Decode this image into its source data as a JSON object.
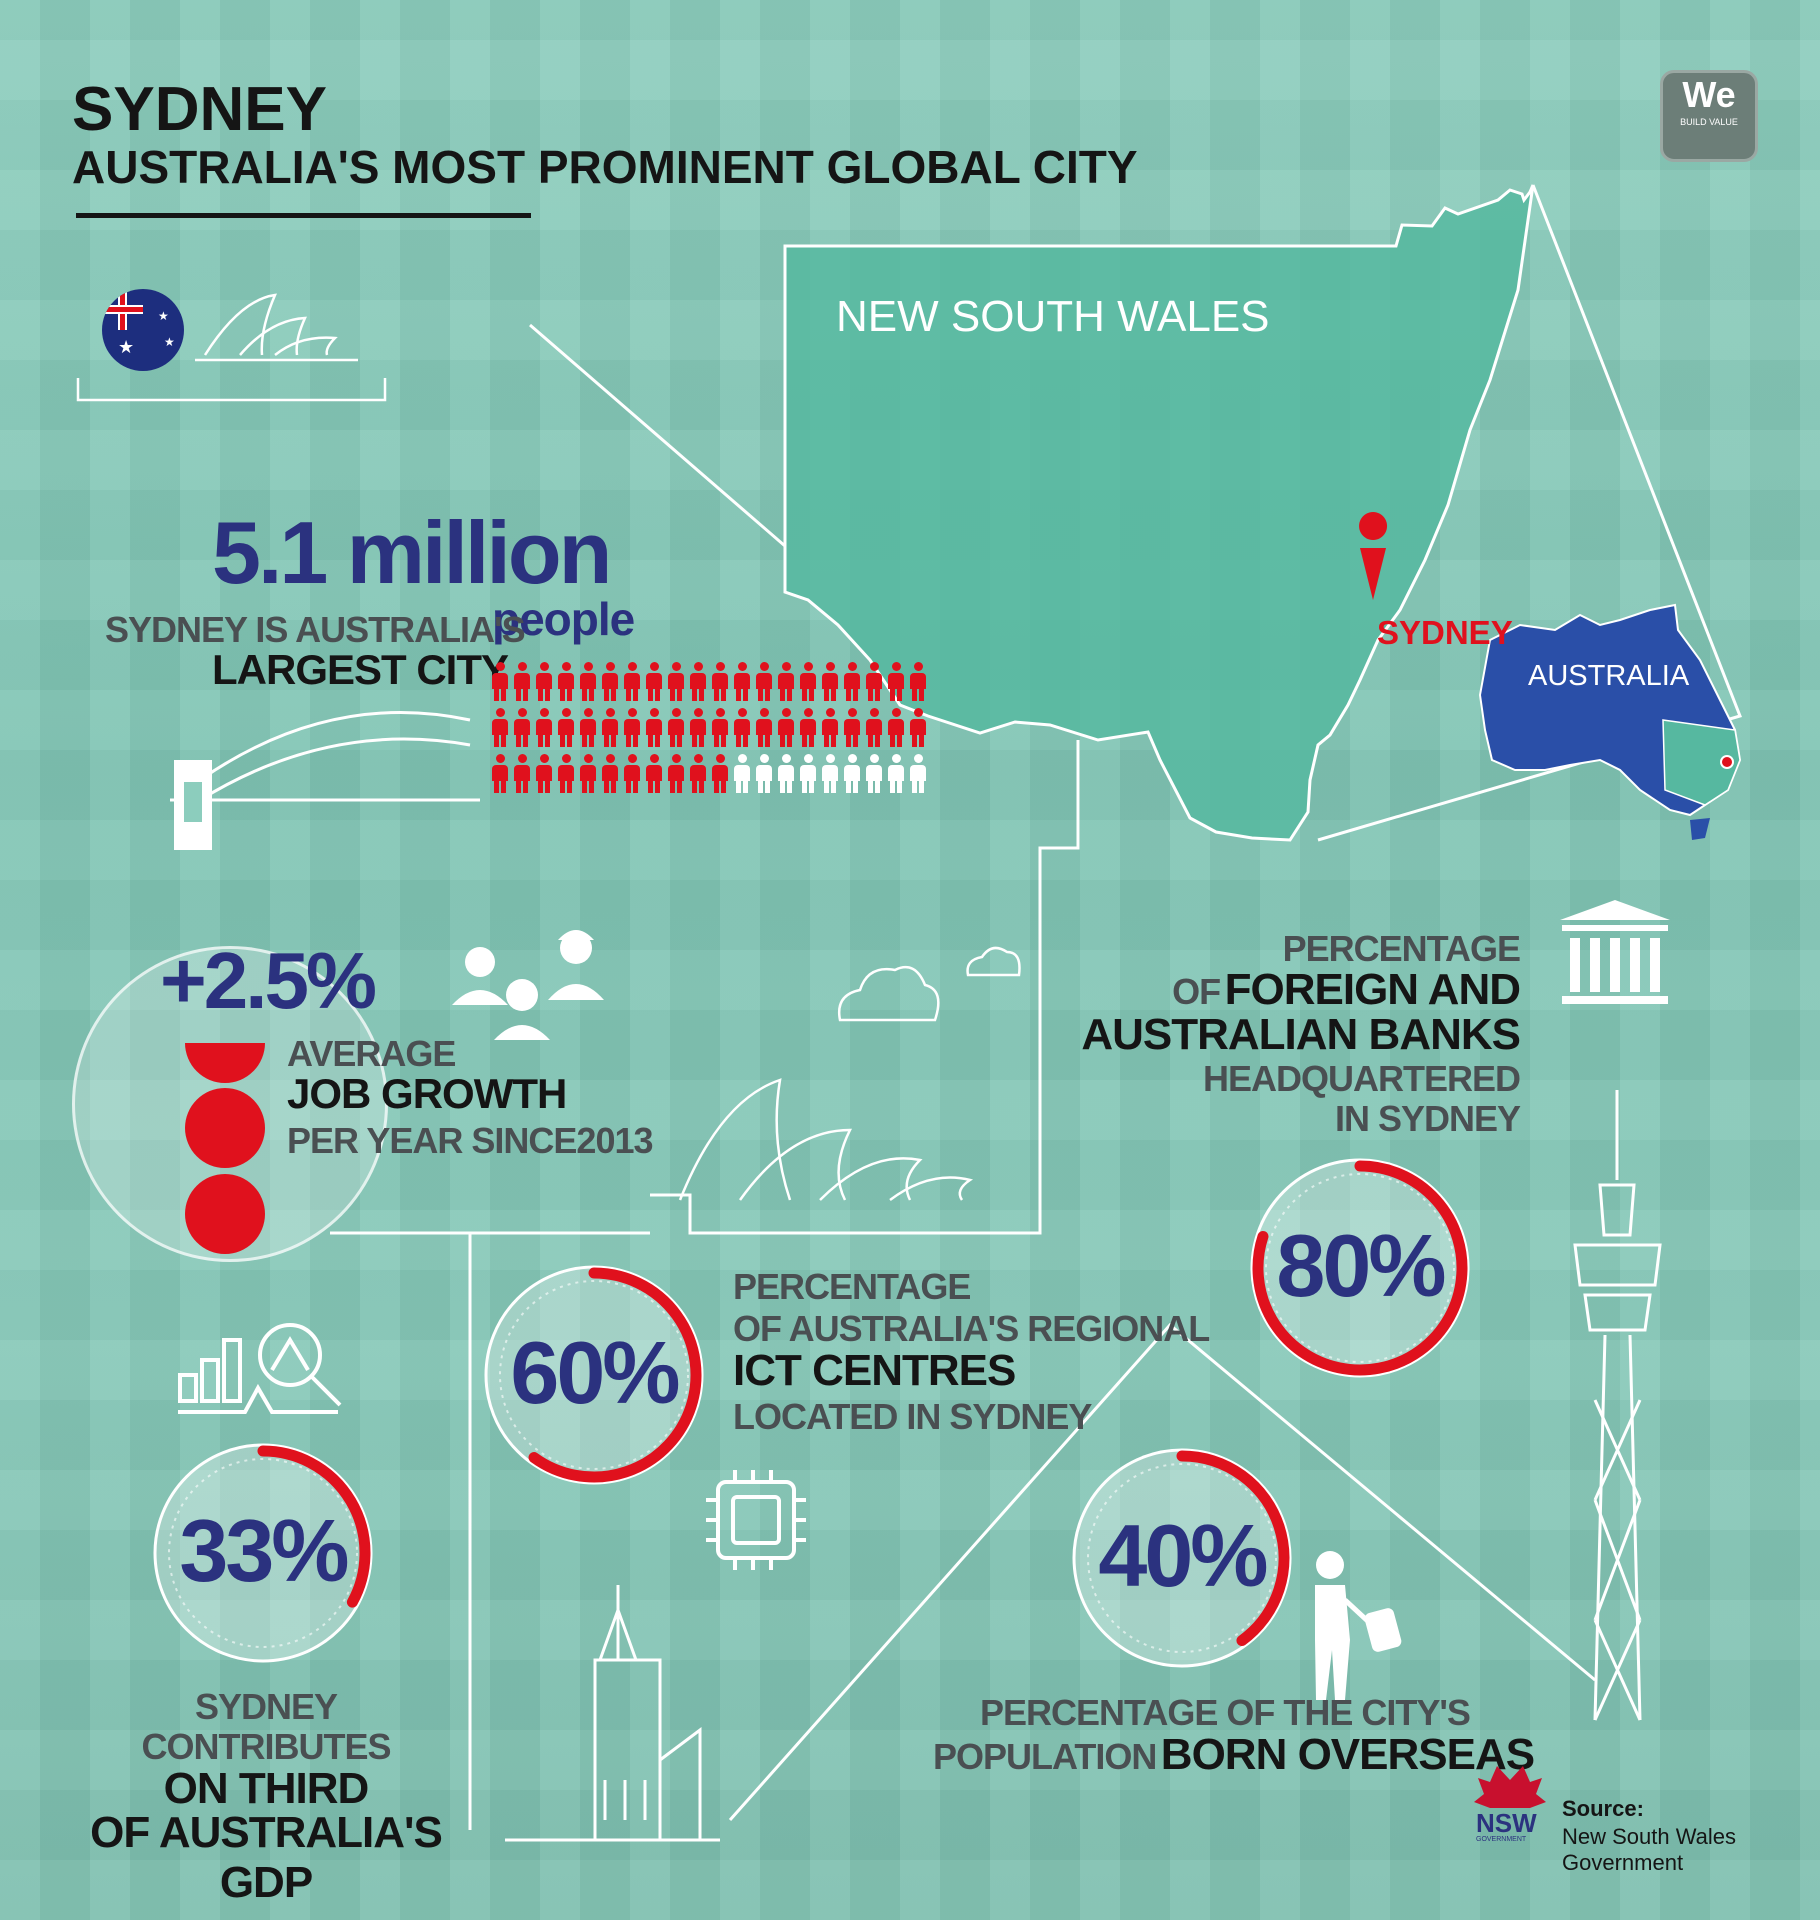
{
  "header": {
    "title": "SYDNEY",
    "subtitle": "AUSTRALIA'S MOST PROMINENT GLOBAL CITY"
  },
  "logo": {
    "main": "We",
    "tag": "BUILD VALUE"
  },
  "map": {
    "state_label": "NEW SOUTH WALES",
    "city_label": "SYDNEY",
    "country_label": "AUSTRALIA"
  },
  "population": {
    "value": "5.1 million",
    "unit": "people",
    "caption_line1": "SYDNEY IS AUSTRALIA'S",
    "caption_line2": "LARGEST CITY",
    "figures_filled": 51,
    "figures_total": 60
  },
  "jobs": {
    "value": "+2.5%",
    "line1": "AVERAGE",
    "line2": "JOB GROWTH",
    "line3": "PER YEAR SINCE2013"
  },
  "banks": {
    "line1": "PERCENTAGE",
    "line2_prefix": "OF",
    "line2_bold": "FOREIGN AND",
    "line3": "AUSTRALIAN BANKS",
    "line4": "HEADQUARTERED",
    "line5": "IN SYDNEY",
    "value": "80%",
    "fraction": 0.8
  },
  "ict": {
    "value": "60%",
    "fraction": 0.6,
    "line1": "PERCENTAGE",
    "line2": "OF AUSTRALIA'S REGIONAL",
    "line3": "ICT CENTRES",
    "line4": "LOCATED IN SYDNEY"
  },
  "gdp": {
    "value": "33%",
    "fraction": 0.33,
    "line1": "SYDNEY",
    "line2": "CONTRIBUTES",
    "line3": "ON THIRD",
    "line4": "OF AUSTRALIA'S GDP"
  },
  "overseas": {
    "value": "40%",
    "fraction": 0.4,
    "line1_normal": "PERCENTAGE OF THE CITY'S",
    "line2_normal": "POPULATION",
    "line2_bold": "BORN OVERSEAS"
  },
  "source": {
    "label": "Source:",
    "line1": "New South Wales",
    "line2": "Government",
    "logo_text": "NSW",
    "logo_sub": "GOVERNMENT"
  },
  "colors": {
    "accent_red": "#e0111d",
    "navy": "#2b327f",
    "teal": "#56b8a0",
    "map_blue": "#2a4fa8"
  },
  "icons": [
    "australian-flag-icon",
    "opera-house-icon",
    "harbour-bridge-icon",
    "person-icon",
    "workers-icon",
    "cloud-icon",
    "bank-icon",
    "chart-magnifier-icon",
    "chip-icon",
    "traveller-icon",
    "church-icon",
    "sydney-tower-icon",
    "waratah-icon"
  ]
}
